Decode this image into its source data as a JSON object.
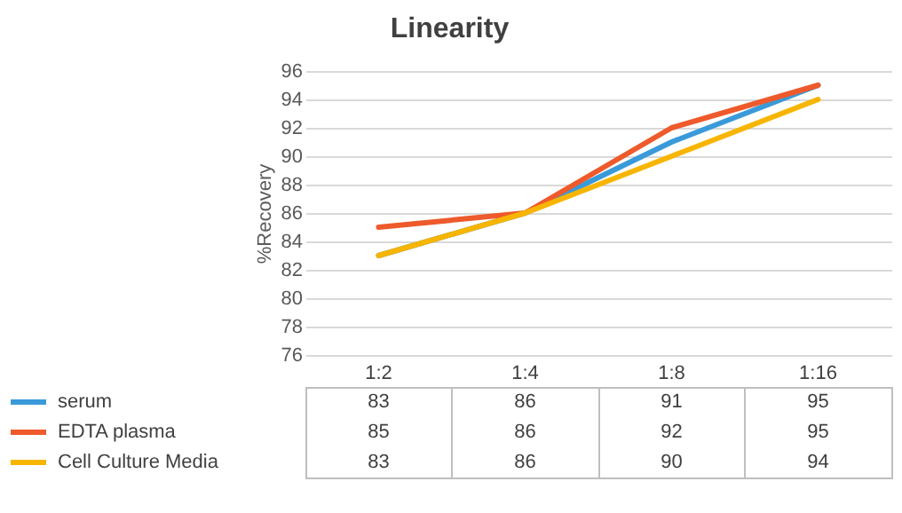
{
  "chart_data": {
    "type": "line",
    "title": "Linearity",
    "ylabel": "%Recovery",
    "categories": [
      "1:2",
      "1:4",
      "1:8",
      "1:16"
    ],
    "series": [
      {
        "name": "serum",
        "color": "#3a9ad9",
        "values": [
          83,
          86,
          91,
          95
        ]
      },
      {
        "name": "EDTA plasma",
        "color": "#ee5a2c",
        "values": [
          85,
          86,
          92,
          95
        ]
      },
      {
        "name": "Cell Culture Media",
        "color": "#f7b500",
        "values": [
          83,
          86,
          90,
          94
        ]
      }
    ],
    "ylim": [
      76,
      96
    ],
    "yticks": [
      76,
      78,
      80,
      82,
      84,
      86,
      88,
      90,
      92,
      94,
      96
    ],
    "grid": "y",
    "data_labels": true,
    "legend": "bottom"
  }
}
